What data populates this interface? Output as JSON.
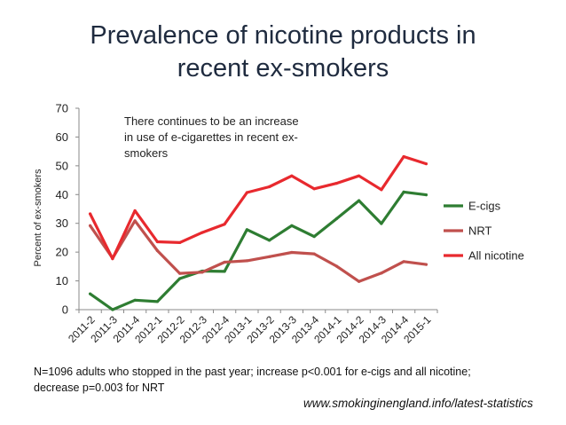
{
  "slide": {
    "title_line1": "Prevalence of nicotine products in",
    "title_line2": "recent ex-smokers",
    "footnote_line1": "N=1096 adults who stopped in the past year; increase p<0.001 for e-cigs and all nicotine;",
    "footnote_line2": "decrease p=0.003 for NRT",
    "source": "www.smokinginengland.info/latest-statistics"
  },
  "chart_data": {
    "type": "line",
    "ylabel": "Percent of ex-smokers",
    "ylim": [
      0,
      70
    ],
    "yticks": [
      0,
      10,
      20,
      30,
      40,
      50,
      60,
      70
    ],
    "grid": false,
    "legend_position": "right",
    "annotation": [
      "There continues to be an increase",
      "in use of e-cigarettes in recent ex-",
      "smokers"
    ],
    "categories": [
      "2011-2",
      "2011-3",
      "2011-4",
      "2012-1",
      "2012-2",
      "2012-3",
      "2012-4",
      "2013-1",
      "2013-2",
      "2013-3",
      "2013-4",
      "2014-1",
      "2014-2",
      "2014-3",
      "2014-4",
      "2015-1"
    ],
    "series": [
      {
        "name": "E-cigs",
        "color": "#2e7d32",
        "values": [
          5.5,
          0,
          3.3,
          2.8,
          10.8,
          13.4,
          13.3,
          27.8,
          24.1,
          29.2,
          25.4,
          31.6,
          37.9,
          29.9,
          40.9,
          39.9
        ]
      },
      {
        "name": "NRT",
        "color": "#c0504d",
        "values": [
          29.2,
          17.9,
          30.9,
          20.5,
          12.6,
          13.0,
          16.5,
          17.0,
          18.4,
          19.9,
          19.4,
          15.1,
          9.8,
          12.7,
          16.7,
          15.7
        ]
      },
      {
        "name": "All nicotine",
        "color": "#e8292e",
        "values": [
          33.3,
          17.7,
          34.4,
          23.6,
          23.3,
          26.8,
          29.7,
          40.7,
          42.7,
          46.5,
          42.0,
          43.9,
          46.5,
          41.7,
          53.2,
          50.7
        ]
      }
    ]
  }
}
